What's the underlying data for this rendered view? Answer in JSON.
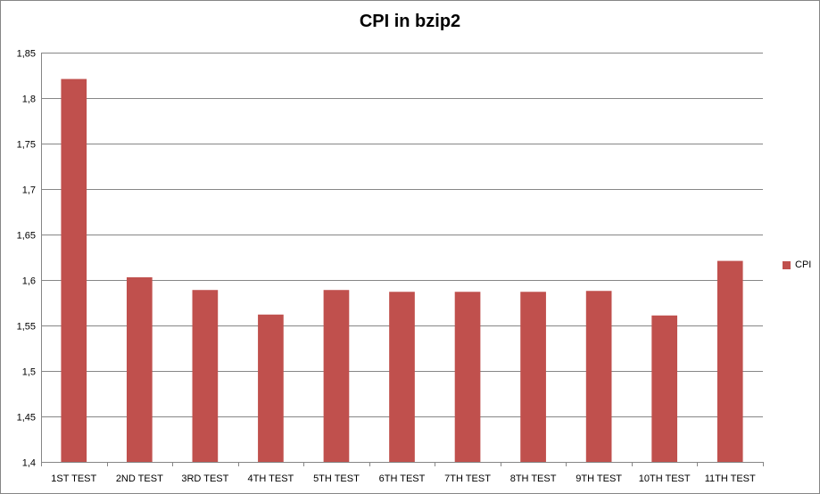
{
  "chart_data": {
    "type": "bar",
    "title": "CPI in bzip2",
    "xlabel": "",
    "ylabel": "",
    "categories": [
      "1ST TEST",
      "2ND TEST",
      "3RD TEST",
      "4TH TEST",
      "5TH TEST",
      "6TH TEST",
      "7TH TEST",
      "8TH TEST",
      "9TH TEST",
      "10TH TEST",
      "11TH TEST"
    ],
    "series": [
      {
        "name": "CPI",
        "color": "#C0504D",
        "values": [
          1.821,
          1.603,
          1.589,
          1.562,
          1.589,
          1.587,
          1.587,
          1.587,
          1.588,
          1.561,
          1.621
        ]
      }
    ],
    "ylim": [
      1.4,
      1.85
    ],
    "yticks": [
      1.4,
      1.45,
      1.5,
      1.55,
      1.6,
      1.65,
      1.7,
      1.75,
      1.8,
      1.85
    ],
    "ytick_labels": [
      "1,4",
      "1,45",
      "1,5",
      "1,55",
      "1,6",
      "1,65",
      "1,7",
      "1,75",
      "1,8",
      "1,85"
    ],
    "grid": true,
    "legend_position": "right"
  }
}
